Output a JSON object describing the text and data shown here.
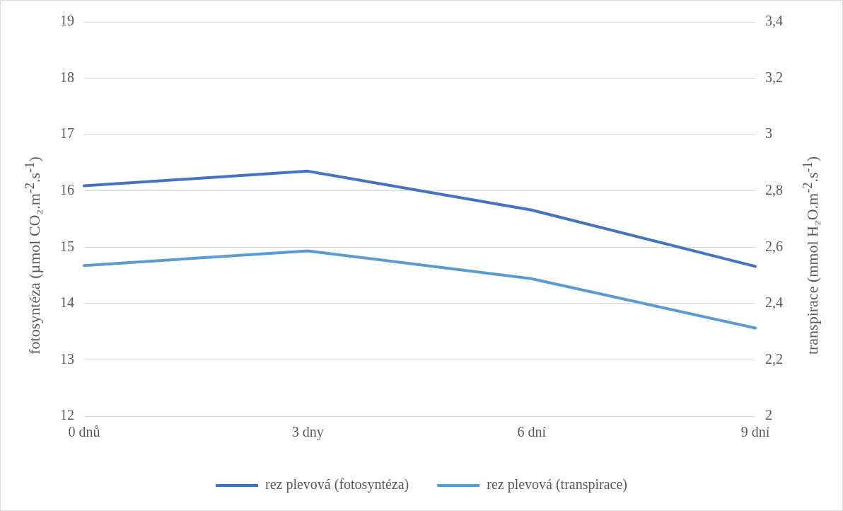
{
  "chart_data": {
    "type": "line",
    "categories": [
      "0 dnů",
      "3 dny",
      "6 dní",
      "9 dní"
    ],
    "ylabel": "fotosyntéza (µmol CO₂.m$^{-2}$.s$^{-1}$)",
    "y2label": "transpirace (mmol H₂O.m$^{-2}$.s$^{-1}$)",
    "series": [
      {
        "name": "rez plevová (fotosyntéza)",
        "color": "#4472c4",
        "values": [
          16.09,
          16.35,
          15.66,
          14.66
        ]
      },
      {
        "name": "rez plevová (transpirace)",
        "color": "#5b9bd5",
        "axis": "y2",
        "values": [
          2.535,
          2.587,
          2.488,
          2.313
        ]
      }
    ],
    "ylim": [
      12,
      19
    ],
    "yticks": [
      12,
      13,
      14,
      15,
      16,
      17,
      18,
      19
    ],
    "y2lim": [
      2,
      3.4
    ],
    "y2ticks": [
      {
        "value": 2,
        "label": "2"
      },
      {
        "value": 2.2,
        "label": "2,2"
      },
      {
        "value": 2.4,
        "label": "2,4"
      },
      {
        "value": 2.6,
        "label": "2,6"
      },
      {
        "value": 2.8,
        "label": "2,8"
      },
      {
        "value": 3,
        "label": "3"
      },
      {
        "value": 3.2,
        "label": "3,2"
      },
      {
        "value": 3.4,
        "label": "3,4"
      }
    ],
    "grid": "y",
    "legend": "bottom",
    "marker": "none",
    "line_style": "solid"
  }
}
